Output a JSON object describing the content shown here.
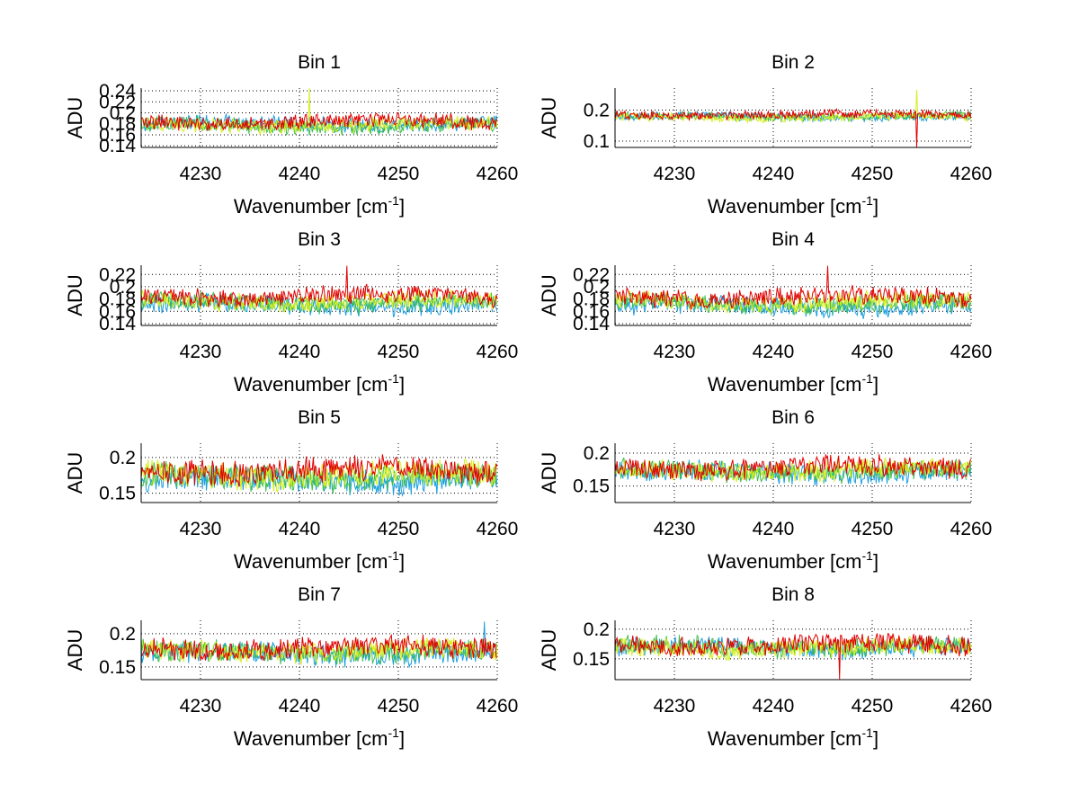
{
  "figure": {
    "background": "#ffffff",
    "series_colors": [
      "#1b9fe0",
      "#3fbf4f",
      "#d6ef1a",
      "#e00000"
    ]
  },
  "chart_data": [
    {
      "type": "line",
      "title": "Bin 1",
      "xlabel": "Wavenumber [cm",
      "xlabel_sup": "-1",
      "xlabel_tail": "]",
      "ylabel": "ADU",
      "xlim": [
        4224,
        4260
      ],
      "ylim": [
        0.137,
        0.245
      ],
      "xticks": [
        4230,
        4240,
        4250,
        4260
      ],
      "xtick_labels": [
        "4230",
        "4240",
        "4250",
        "4260"
      ],
      "yticks": [
        0.14,
        0.16,
        0.18,
        0.2,
        0.22,
        0.24
      ],
      "ytick_labels": [
        "0.14",
        "0.16",
        "0.18",
        "0.2",
        "0.22",
        "0.24"
      ],
      "grid": true,
      "series_count": 4,
      "series_means": [
        0.18,
        0.176,
        0.178,
        0.184
      ],
      "noise_amplitude": 0.012,
      "spikes": [
        {
          "x": 4241,
          "value": 0.245,
          "series": 2
        }
      ]
    },
    {
      "type": "line",
      "title": "Bin 2",
      "xlabel": "Wavenumber [cm",
      "xlabel_sup": "-1",
      "xlabel_tail": "]",
      "ylabel": "ADU",
      "xlim": [
        4224,
        4260
      ],
      "ylim": [
        0.08,
        0.27
      ],
      "xticks": [
        4230,
        4240,
        4250,
        4260
      ],
      "xtick_labels": [
        "4230",
        "4240",
        "4250",
        "4260"
      ],
      "yticks": [
        0.1,
        0.2
      ],
      "ytick_labels": [
        "0.1",
        "0.2"
      ],
      "grid": true,
      "series_count": 4,
      "series_means": [
        0.178,
        0.18,
        0.176,
        0.185
      ],
      "noise_amplitude": 0.012,
      "spikes": [
        {
          "x": 4254.5,
          "value": 0.08,
          "series": 3
        },
        {
          "x": 4254.5,
          "value": 0.265,
          "series": 2
        }
      ]
    },
    {
      "type": "line",
      "title": "Bin 3",
      "xlabel": "Wavenumber [cm",
      "xlabel_sup": "-1",
      "xlabel_tail": "]",
      "ylabel": "ADU",
      "xlim": [
        4224,
        4260
      ],
      "ylim": [
        0.137,
        0.235
      ],
      "xticks": [
        4230,
        4240,
        4250,
        4260
      ],
      "xtick_labels": [
        "4230",
        "4240",
        "4250",
        "4260"
      ],
      "yticks": [
        0.14,
        0.16,
        0.18,
        0.2,
        0.22
      ],
      "ytick_labels": [
        "0.14",
        "0.16",
        "0.18",
        "0.2",
        "0.22"
      ],
      "grid": true,
      "series_count": 4,
      "series_means": [
        0.17,
        0.174,
        0.177,
        0.185
      ],
      "noise_amplitude": 0.013,
      "spikes": [
        {
          "x": 4244.8,
          "value": 0.234,
          "series": 3
        }
      ]
    },
    {
      "type": "line",
      "title": "Bin 4",
      "xlabel": "Wavenumber [cm",
      "xlabel_sup": "-1",
      "xlabel_tail": "]",
      "ylabel": "ADU",
      "xlim": [
        4224,
        4260
      ],
      "ylim": [
        0.137,
        0.235
      ],
      "xticks": [
        4230,
        4240,
        4250,
        4260
      ],
      "xtick_labels": [
        "4230",
        "4240",
        "4250",
        "4260"
      ],
      "yticks": [
        0.14,
        0.16,
        0.18,
        0.2,
        0.22
      ],
      "ytick_labels": [
        "0.14",
        "0.16",
        "0.18",
        "0.2",
        "0.22"
      ],
      "grid": true,
      "series_count": 4,
      "series_means": [
        0.168,
        0.172,
        0.176,
        0.183
      ],
      "noise_amplitude": 0.013,
      "spikes": [
        {
          "x": 4245.5,
          "value": 0.234,
          "series": 3
        }
      ]
    },
    {
      "type": "line",
      "title": "Bin 5",
      "xlabel": "Wavenumber [cm",
      "xlabel_sup": "-1",
      "xlabel_tail": "]",
      "ylabel": "ADU",
      "xlim": [
        4224,
        4260
      ],
      "ylim": [
        0.137,
        0.22
      ],
      "xticks": [
        4230,
        4240,
        4250,
        4260
      ],
      "xtick_labels": [
        "4230",
        "4240",
        "4250",
        "4260"
      ],
      "yticks": [
        0.15,
        0.2
      ],
      "ytick_labels": [
        "0.15",
        "0.2"
      ],
      "grid": true,
      "series_count": 4,
      "series_means": [
        0.168,
        0.172,
        0.176,
        0.182
      ],
      "noise_amplitude": 0.016,
      "spikes": []
    },
    {
      "type": "line",
      "title": "Bin 6",
      "xlabel": "Wavenumber [cm",
      "xlabel_sup": "-1",
      "xlabel_tail": "]",
      "ylabel": "ADU",
      "xlim": [
        4224,
        4260
      ],
      "ylim": [
        0.125,
        0.215
      ],
      "xticks": [
        4230,
        4240,
        4250,
        4260
      ],
      "xtick_labels": [
        "4230",
        "4240",
        "4250",
        "4260"
      ],
      "yticks": [
        0.15,
        0.2
      ],
      "ytick_labels": [
        "0.15",
        "0.2"
      ],
      "grid": true,
      "series_count": 4,
      "series_means": [
        0.17,
        0.172,
        0.174,
        0.178
      ],
      "noise_amplitude": 0.014,
      "spikes": []
    },
    {
      "type": "line",
      "title": "Bin 7",
      "xlabel": "Wavenumber [cm",
      "xlabel_sup": "-1",
      "xlabel_tail": "]",
      "ylabel": "ADU",
      "xlim": [
        4224,
        4260
      ],
      "ylim": [
        0.131,
        0.22
      ],
      "xticks": [
        4230,
        4240,
        4250,
        4260
      ],
      "xtick_labels": [
        "4230",
        "4240",
        "4250",
        "4260"
      ],
      "yticks": [
        0.15,
        0.2
      ],
      "ytick_labels": [
        "0.15",
        "0.2"
      ],
      "grid": true,
      "series_count": 4,
      "series_means": [
        0.17,
        0.172,
        0.174,
        0.179
      ],
      "noise_amplitude": 0.014,
      "spikes": [
        {
          "x": 4258.7,
          "value": 0.218,
          "series": 0
        }
      ]
    },
    {
      "type": "line",
      "title": "Bin 8",
      "xlabel": "Wavenumber [cm",
      "xlabel_sup": "-1",
      "xlabel_tail": "]",
      "ylabel": "ADU",
      "xlim": [
        4224,
        4260
      ],
      "ylim": [
        0.115,
        0.215
      ],
      "xticks": [
        4230,
        4240,
        4250,
        4260
      ],
      "xtick_labels": [
        "4230",
        "4240",
        "4250",
        "4260"
      ],
      "yticks": [
        0.15,
        0.2
      ],
      "ytick_labels": [
        "0.15",
        "0.2"
      ],
      "grid": true,
      "series_count": 4,
      "series_means": [
        0.168,
        0.17,
        0.168,
        0.174
      ],
      "noise_amplitude": 0.014,
      "spikes": [
        {
          "x": 4246.7,
          "value": 0.116,
          "series": 3
        }
      ]
    }
  ]
}
